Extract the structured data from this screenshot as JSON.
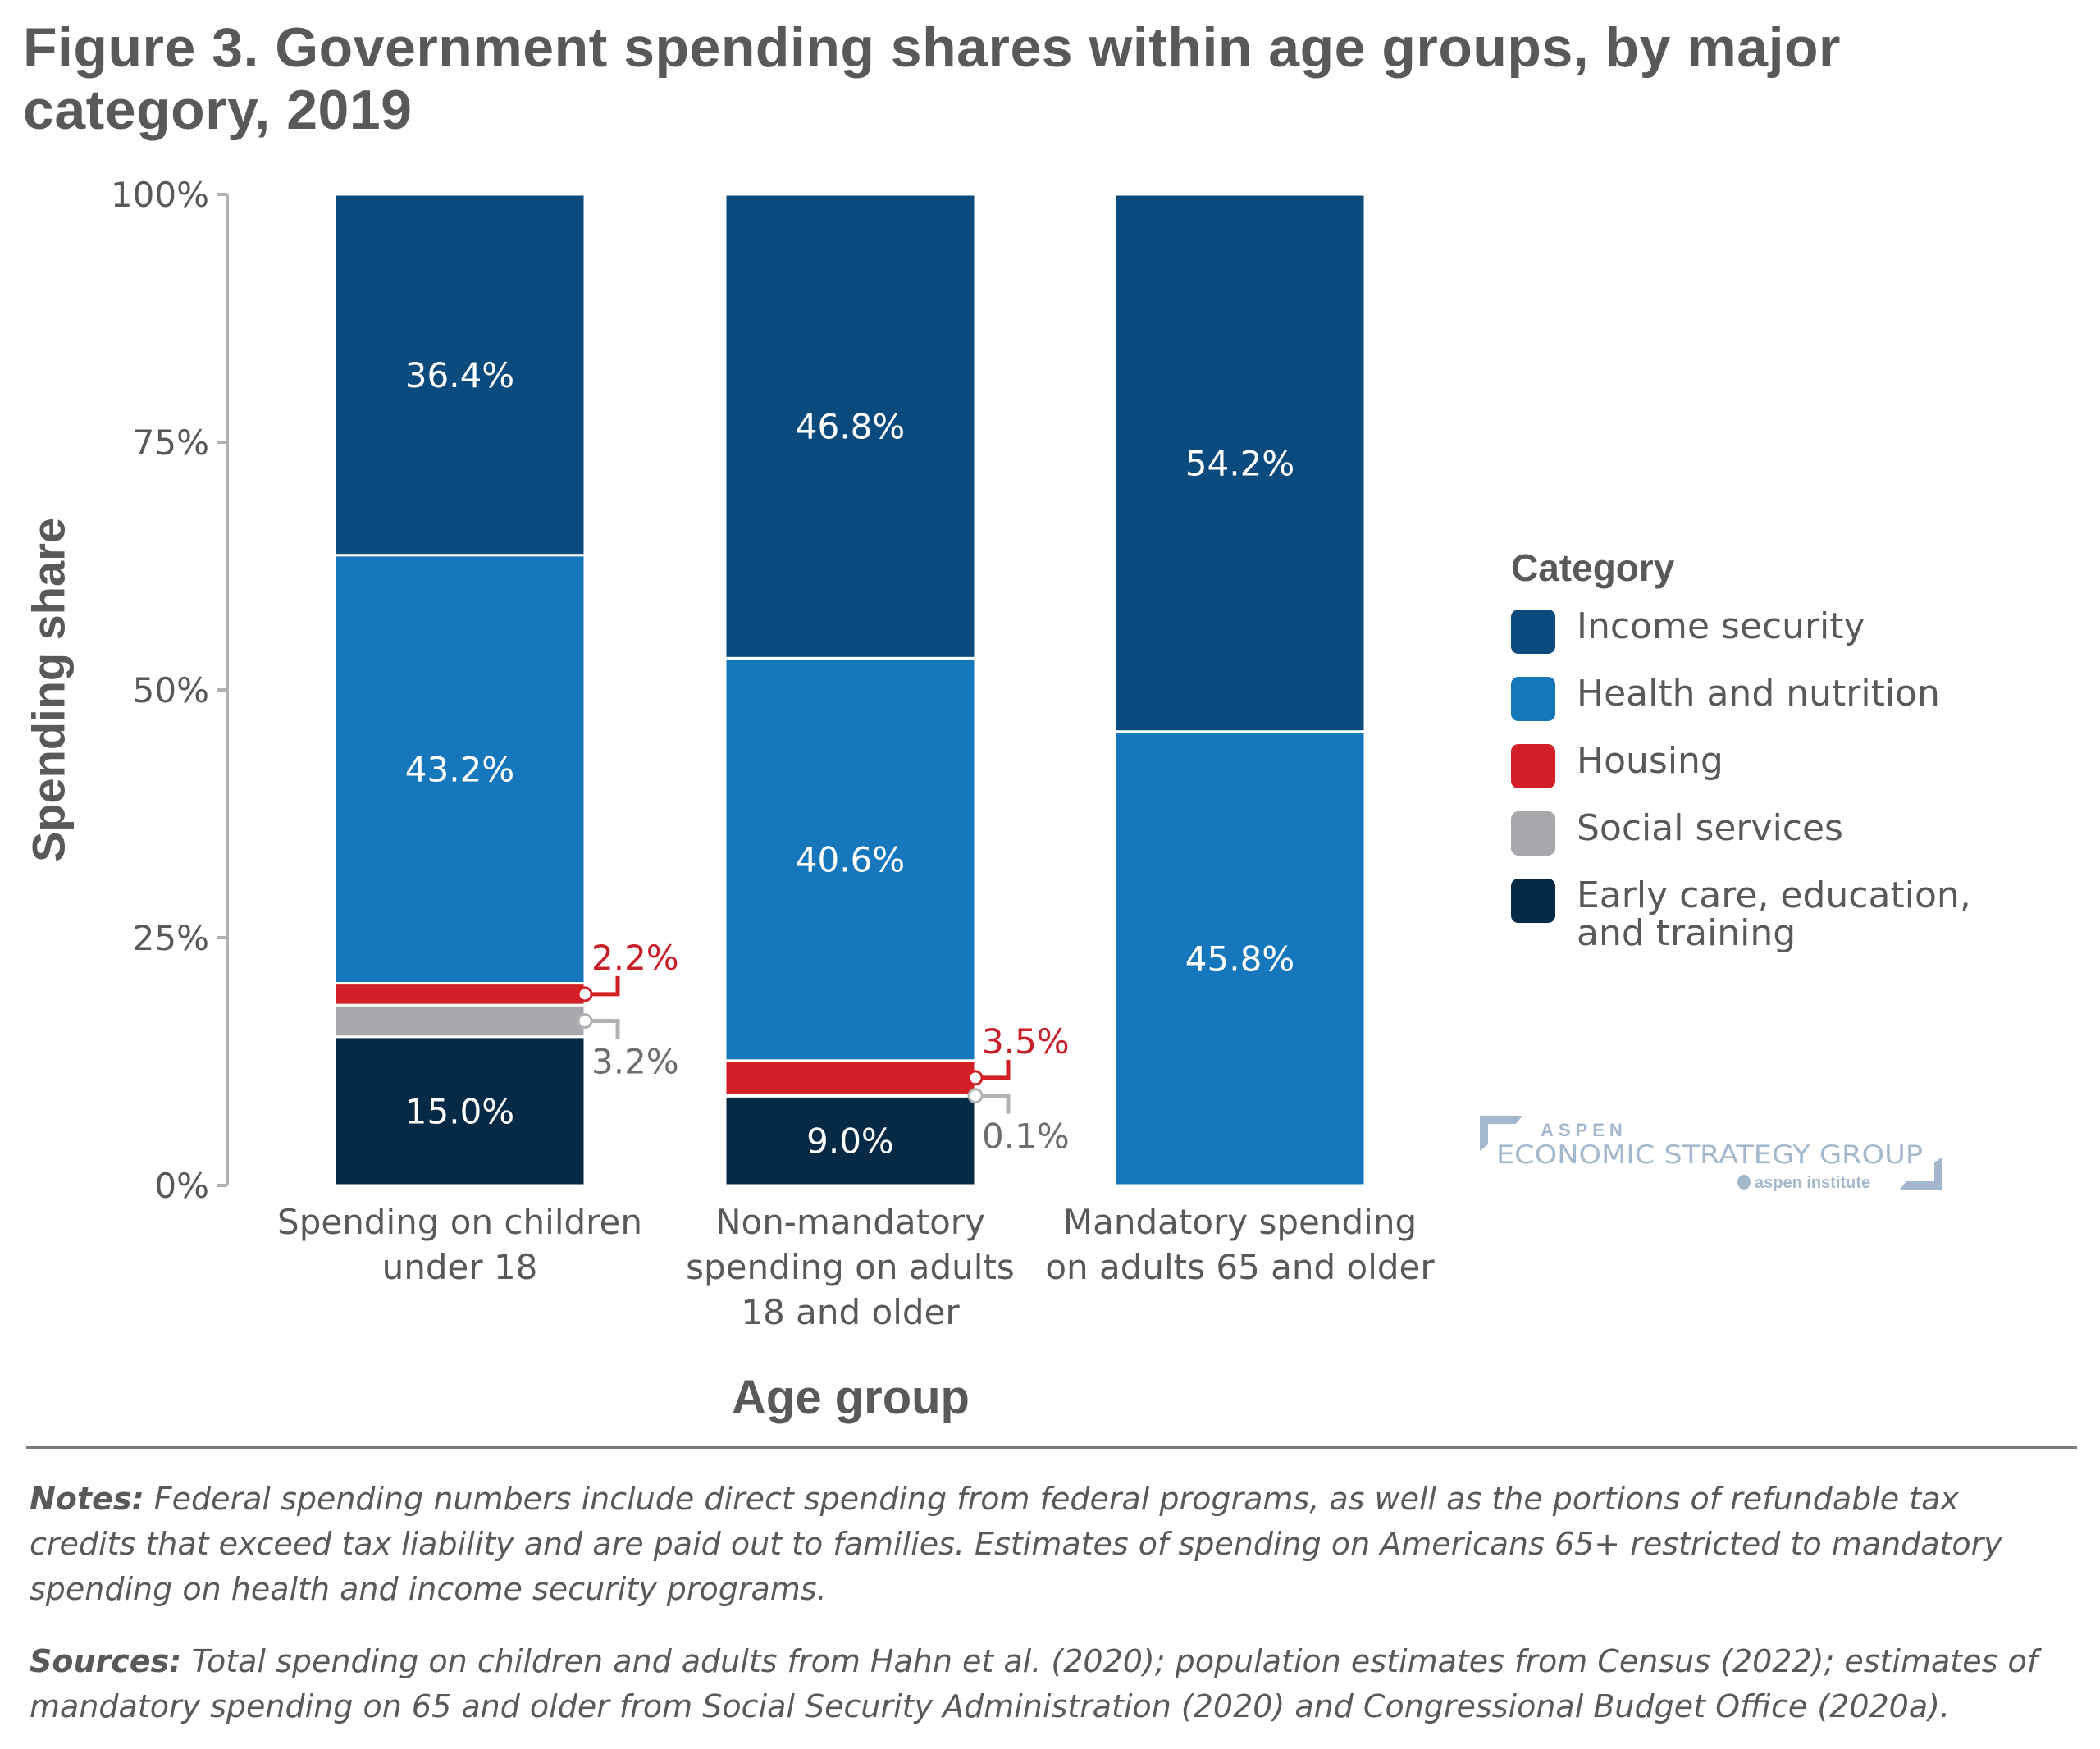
{
  "title": "Figure 3. Government spending shares within age groups, by major category, 2019",
  "chart_data": {
    "type": "bar",
    "stacked": true,
    "orientation": "vertical",
    "title": "Figure 3. Government spending shares within age groups, by major category, 2019",
    "xlabel": "Age group",
    "ylabel": "Spending share",
    "ylim": [
      0,
      100
    ],
    "yticks": [
      {
        "value": 0,
        "label": "0%"
      },
      {
        "value": 25,
        "label": "25%"
      },
      {
        "value": 50,
        "label": "50%"
      },
      {
        "value": 75,
        "label": "75%"
      },
      {
        "value": 100,
        "label": "100%"
      }
    ],
    "grid": false,
    "legend_position": "right",
    "legend_title": "Category",
    "categories": [
      [
        "Spending on children",
        "under 18"
      ],
      [
        "Non-mandatory",
        "spending on adults",
        "18 and older"
      ],
      [
        "Mandatory spending",
        "on adults 65 and older"
      ]
    ],
    "series": [
      {
        "name": "Early care, education, and training",
        "legend_lines": [
          "Early care, education,",
          "and training"
        ],
        "color": "#062a46",
        "values": [
          15.0,
          9.0,
          0
        ],
        "labels": [
          "15.0%",
          "9.0%",
          ""
        ]
      },
      {
        "name": "Social services",
        "legend_lines": [
          "Social services"
        ],
        "color": "#a7a9ac",
        "values": [
          3.2,
          0.1,
          0
        ],
        "labels": [
          "3.2%",
          "0.1%",
          ""
        ]
      },
      {
        "name": "Housing",
        "legend_lines": [
          "Housing"
        ],
        "color": "#d31f26",
        "values": [
          2.2,
          3.5,
          0
        ],
        "labels": [
          "2.2%",
          "3.5%",
          ""
        ]
      },
      {
        "name": "Health and nutrition",
        "legend_lines": [
          "Health and nutrition"
        ],
        "color": "#1777bd",
        "values": [
          43.2,
          40.6,
          45.8
        ],
        "labels": [
          "43.2%",
          "40.6%",
          "45.8%"
        ]
      },
      {
        "name": "Income security",
        "legend_lines": [
          "Income security"
        ],
        "color": "#0b4a7c",
        "values": [
          36.4,
          46.8,
          54.2
        ],
        "labels": [
          "36.4%",
          "46.8%",
          "54.2%"
        ]
      }
    ],
    "legend_order": [
      "Income security",
      "Health and nutrition",
      "Housing",
      "Social services",
      "Early care, education, and training"
    ],
    "callouts": [
      {
        "category": 0,
        "series": "Housing",
        "label": "2.2%",
        "side": "above",
        "color": "#c8202a"
      },
      {
        "category": 0,
        "series": "Social services",
        "label": "3.2%",
        "side": "below",
        "color": "#6d6e71"
      },
      {
        "category": 1,
        "series": "Housing",
        "label": "3.5%",
        "side": "above",
        "color": "#c8202a"
      },
      {
        "category": 1,
        "series": "Social services",
        "label": "0.1%",
        "side": "below",
        "color": "#6d6e71"
      }
    ]
  },
  "logo": {
    "line1": "ASPEN",
    "line2": "ECONOMIC STRATEGY GROUP",
    "line3": "aspen institute",
    "color": "#a3b8cc"
  },
  "notes": {
    "label": "Notes:",
    "text": " Federal spending numbers include direct spending from federal programs, as well as the portions of refundable tax credits that exceed tax liability and are paid out to families. Estimates of spending on Americans 65+ restricted to mandatory spending on health and income security programs."
  },
  "sources": {
    "label": "Sources:",
    "text": " Total spending on children and adults from Hahn et al. (2020); population estimates from Census (2022); estimates of mandatory spending on 65 and older from Social Security Administration (2020) and Congressional Budget Office (2020a)."
  }
}
